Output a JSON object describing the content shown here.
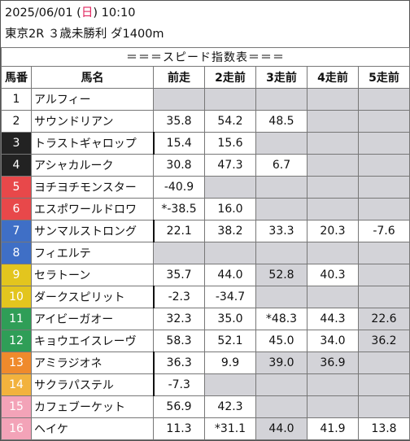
{
  "header": {
    "date": "2025/06/01",
    "weekday": "日",
    "time": "10:10",
    "race": "東京2R ３歳未勝利 ダ1400m"
  },
  "banner": "＝＝＝スピード指数表＝＝＝",
  "columns": [
    "馬番",
    "馬名",
    "前走",
    "2走前",
    "3走前",
    "4走前",
    "5走前"
  ],
  "rows": [
    {
      "num": "1",
      "name": "アルフィー",
      "vals": [
        "",
        "",
        "",
        "",
        ""
      ],
      "bg": "#ffffff",
      "fg": "#111111",
      "bar": false
    },
    {
      "num": "2",
      "name": "サウンドリアン",
      "vals": [
        "35.8",
        "54.2",
        "48.5",
        "",
        ""
      ],
      "bg": "#ffffff",
      "fg": "#111111",
      "bar": false
    },
    {
      "num": "3",
      "name": "トラストギャロップ",
      "vals": [
        "15.4",
        "15.6",
        "",
        "",
        ""
      ],
      "bg": "#222222",
      "fg": "#ffffff",
      "bar": true
    },
    {
      "num": "4",
      "name": "アシャカルーク",
      "vals": [
        "30.8",
        "47.3",
        "6.7",
        "",
        ""
      ],
      "bg": "#222222",
      "fg": "#ffffff",
      "bar": false
    },
    {
      "num": "5",
      "name": "ヨチヨチモンスター",
      "vals": [
        "-40.9",
        "",
        "",
        "",
        ""
      ],
      "bg": "#e8484a",
      "fg": "#ffffff",
      "bar": false
    },
    {
      "num": "6",
      "name": "エスポワールドロワ",
      "vals": [
        "*-38.5",
        "16.0",
        "",
        "",
        ""
      ],
      "bg": "#e8484a",
      "fg": "#ffffff",
      "bar": false
    },
    {
      "num": "7",
      "name": "サンマルストロング",
      "vals": [
        "22.1",
        "38.2",
        "33.3",
        "20.3",
        "-7.6"
      ],
      "bg": "#3f6fc6",
      "fg": "#ffffff",
      "bar": true
    },
    {
      "num": "8",
      "name": "フィエルテ",
      "vals": [
        "",
        "",
        "",
        "",
        ""
      ],
      "bg": "#3f6fc6",
      "fg": "#ffffff",
      "bar": false
    },
    {
      "num": "9",
      "name": "セラトーン",
      "vals": [
        "35.7",
        "44.0",
        "52.8",
        "40.3",
        ""
      ],
      "bg": "#e3c51e",
      "fg": "#ffffff",
      "bar": false
    },
    {
      "num": "10",
      "name": "ダークスピリット",
      "vals": [
        "-2.3",
        "-34.7",
        "",
        "",
        ""
      ],
      "bg": "#e3c51e",
      "fg": "#ffffff",
      "bar": true
    },
    {
      "num": "11",
      "name": "アイビーガオー",
      "vals": [
        "32.3",
        "35.0",
        "*48.3",
        "44.3",
        "22.6"
      ],
      "bg": "#2f9e57",
      "fg": "#ffffff",
      "bar": false
    },
    {
      "num": "12",
      "name": "キョウエイスレーヴ",
      "vals": [
        "58.3",
        "52.1",
        "45.0",
        "34.0",
        "36.2"
      ],
      "bg": "#2f9e57",
      "fg": "#ffffff",
      "bar": false
    },
    {
      "num": "13",
      "name": "アミラジオネ",
      "vals": [
        "36.3",
        "9.9",
        "39.0",
        "36.9",
        ""
      ],
      "bg": "#ef8a2c",
      "fg": "#ffffff",
      "bar": true
    },
    {
      "num": "14",
      "name": "サクラパステル",
      "vals": [
        "-7.3",
        "",
        "",
        "",
        ""
      ],
      "bg": "#f2b23d",
      "fg": "#ffffff",
      "bar": true
    },
    {
      "num": "15",
      "name": "カフェブーケット",
      "vals": [
        "56.9",
        "42.3",
        "",
        "",
        ""
      ],
      "bg": "#f3a3b8",
      "fg": "#ffffff",
      "bar": false
    },
    {
      "num": "16",
      "name": "ヘイケ",
      "vals": [
        "11.3",
        "*31.1",
        "44.0",
        "41.9",
        "13.8"
      ],
      "bg": "#f3a3b8",
      "fg": "#ffffff",
      "bar": false
    }
  ],
  "cell_colors": {
    "empty": "#d3d3d8",
    "grey_filled": "#d3d3d8"
  },
  "grey_cells": [
    [
      1,
      0
    ],
    [
      1,
      1
    ],
    [
      1,
      2
    ],
    [
      1,
      3
    ],
    [
      1,
      4
    ],
    [
      2,
      3
    ],
    [
      2,
      4
    ],
    [
      3,
      2
    ],
    [
      3,
      3
    ],
    [
      3,
      4
    ],
    [
      4,
      3
    ],
    [
      4,
      4
    ],
    [
      5,
      1
    ],
    [
      5,
      2
    ],
    [
      5,
      3
    ],
    [
      5,
      4
    ],
    [
      6,
      2
    ],
    [
      6,
      3
    ],
    [
      6,
      4
    ],
    [
      8,
      0
    ],
    [
      8,
      1
    ],
    [
      8,
      2
    ],
    [
      8,
      3
    ],
    [
      8,
      4
    ],
    [
      9,
      2
    ],
    [
      9,
      4
    ],
    [
      10,
      2
    ],
    [
      10,
      3
    ],
    [
      10,
      4
    ],
    [
      11,
      4
    ],
    [
      12,
      4
    ],
    [
      13,
      2
    ],
    [
      13,
      3
    ],
    [
      13,
      4
    ],
    [
      14,
      1
    ],
    [
      14,
      2
    ],
    [
      14,
      3
    ],
    [
      14,
      4
    ],
    [
      15,
      2
    ],
    [
      15,
      3
    ],
    [
      15,
      4
    ],
    [
      16,
      2
    ]
  ]
}
